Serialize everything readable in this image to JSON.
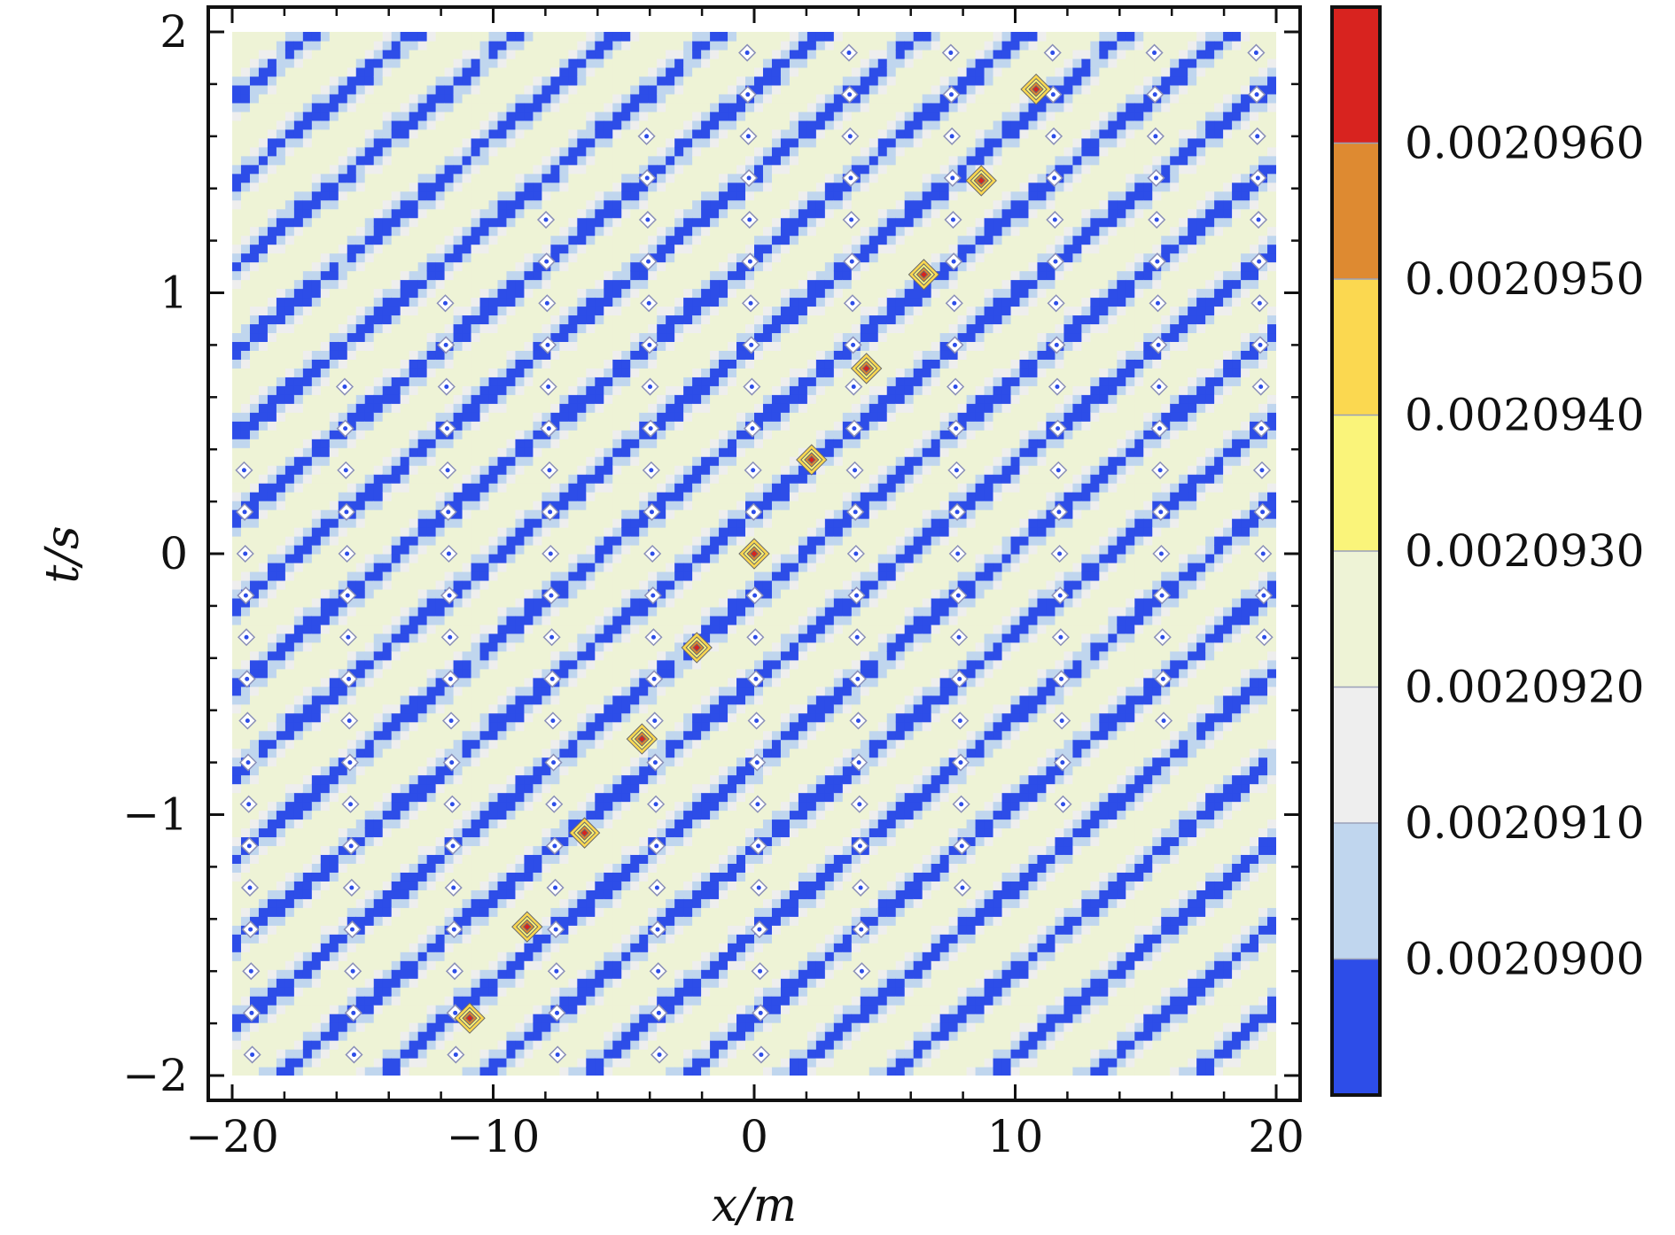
{
  "chart_data": {
    "type": "heatmap",
    "subtype": "filled-contour",
    "title": "",
    "xlabel": "x/m",
    "ylabel": "t/s",
    "xlim": [
      -20,
      20
    ],
    "ylim": [
      -2,
      2
    ],
    "x_ticks": [
      -20,
      -10,
      0,
      10,
      20
    ],
    "x_tick_labels": [
      "−20",
      "−10",
      "0",
      "10",
      "20"
    ],
    "y_ticks": [
      -2,
      -1,
      0,
      1,
      2
    ],
    "y_tick_labels": [
      "−2",
      "−1",
      "0",
      "1",
      "2"
    ],
    "grid": false,
    "colorbar": {
      "levels": [
        0.00209,
        0.002091,
        0.002092,
        0.002093,
        0.002094,
        0.002095,
        0.002096
      ],
      "labels": [
        "0.0020900",
        "0.0020910",
        "0.0020920",
        "0.0020930",
        "0.0020940",
        "0.0020950",
        "0.0020960"
      ],
      "colors": [
        "#2d4de8",
        "#c0d6ee",
        "#eeeeee",
        "#eef3d6",
        "#faf47a",
        "#fbd850",
        "#de8a31",
        "#d8231f"
      ]
    },
    "pattern": {
      "orientation_slope_t_per_x": 0.083,
      "band_spacing_x": 3.9,
      "peak_line": {
        "x_start": -10.9,
        "t_start": -1.78,
        "x_end": 10.8,
        "t_end": 1.78
      },
      "peaks": [
        {
          "x": -10.9,
          "t": -1.78,
          "value": 0.0020965
        },
        {
          "x": -8.7,
          "t": -1.43,
          "value": 0.0020958
        },
        {
          "x": -6.5,
          "t": -1.07,
          "value": 0.0020958
        },
        {
          "x": -4.3,
          "t": -0.71,
          "value": 0.0020962
        },
        {
          "x": -2.2,
          "t": -0.36,
          "value": 0.0020962
        },
        {
          "x": 0.0,
          "t": 0.0,
          "value": 0.0020965
        },
        {
          "x": 2.2,
          "t": 0.36,
          "value": 0.0020962
        },
        {
          "x": 4.3,
          "t": 0.71,
          "value": 0.0020962
        },
        {
          "x": 6.5,
          "t": 1.07,
          "value": 0.0020958
        },
        {
          "x": 8.7,
          "t": 1.43,
          "value": 0.0020958
        },
        {
          "x": 10.8,
          "t": 1.78,
          "value": 0.0020962
        }
      ]
    }
  }
}
